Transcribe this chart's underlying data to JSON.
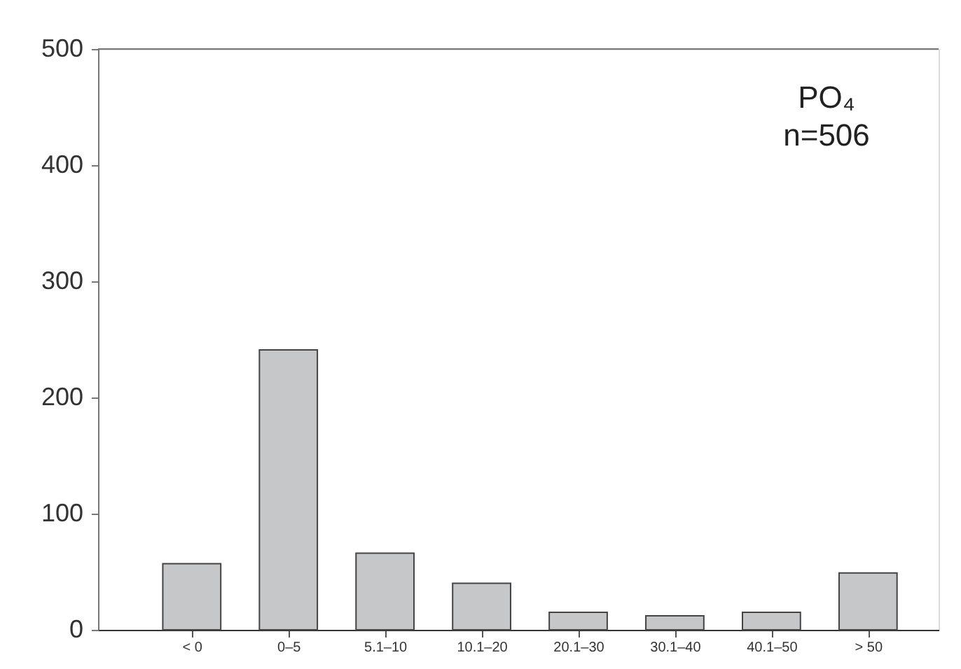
{
  "chart_data": {
    "type": "bar",
    "categories": [
      "< 0",
      "0–5",
      "5.1–10",
      "10.1–20",
      "20.1–30",
      "30.1–40",
      "40.1–50",
      "> 50"
    ],
    "values": [
      57,
      241,
      66,
      40,
      15,
      12,
      15,
      49
    ],
    "color": "#c6c7c9",
    "ylim": [
      0,
      500
    ],
    "yticks": [
      0,
      100,
      200,
      300,
      400,
      500
    ],
    "grid": false,
    "annotations": [
      "PO₄",
      "n=506"
    ]
  }
}
